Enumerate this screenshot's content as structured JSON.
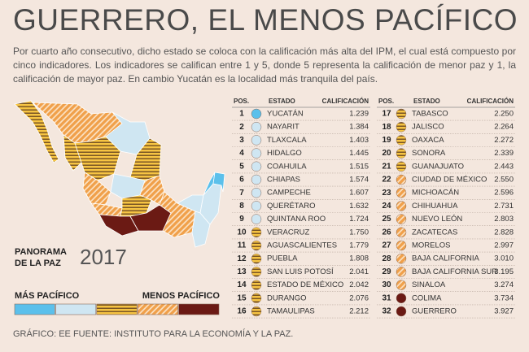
{
  "header": {
    "title": "GUERRERO, EL MENOS PACÍFICO",
    "description": "Por cuarto año consecutivo, dicho estado se coloca con la calificación más alta del IPM, el cual está compuesto por cinco indicadores. Los indicadores se califican entre 1 y 5, donde 5 representa la calificación de menor paz y 1, la calificación de mayor paz. En cambio Yucatán es la localidad más tranquila del país."
  },
  "panorama": {
    "label_line1": "PANORAMA",
    "label_line2": "DE LA PAZ",
    "year": "2017"
  },
  "legend": {
    "left_label": "MÁS PACÍFICO",
    "right_label": "MENOS PACÍFICO",
    "levels": [
      "#5bc0eb",
      "#cfe6f2",
      "url(#pat-yellow)",
      "url(#pat-orange)",
      "#6b1a14"
    ]
  },
  "table": {
    "columns": [
      "POS.",
      "ESTADO",
      "CALIFICACIÓN"
    ],
    "rows": [
      {
        "rank": 1,
        "state": "YUCATÁN",
        "score": "1.239",
        "level": 0
      },
      {
        "rank": 2,
        "state": "NAYARIT",
        "score": "1.384",
        "level": 1
      },
      {
        "rank": 3,
        "state": "TLAXCALA",
        "score": "1.403",
        "level": 1
      },
      {
        "rank": 4,
        "state": "HIDALGO",
        "score": "1.445",
        "level": 1
      },
      {
        "rank": 5,
        "state": "COAHUILA",
        "score": "1.515",
        "level": 1
      },
      {
        "rank": 6,
        "state": "CHIAPAS",
        "score": "1.574",
        "level": 1
      },
      {
        "rank": 7,
        "state": "CAMPECHE",
        "score": "1.607",
        "level": 1
      },
      {
        "rank": 8,
        "state": "QUERÉTARO",
        "score": "1.632",
        "level": 1
      },
      {
        "rank": 9,
        "state": "QUINTANA ROO",
        "score": "1.724",
        "level": 1
      },
      {
        "rank": 10,
        "state": "VERACRUZ",
        "score": "1.750",
        "level": 2
      },
      {
        "rank": 11,
        "state": "AGUASCALIENTES",
        "score": "1.779",
        "level": 2
      },
      {
        "rank": 12,
        "state": "PUEBLA",
        "score": "1.808",
        "level": 2
      },
      {
        "rank": 13,
        "state": "SAN LUIS POTOSÍ",
        "score": "2.041",
        "level": 2
      },
      {
        "rank": 14,
        "state": "ESTADO DE MÉXICO",
        "score": "2.042",
        "level": 2
      },
      {
        "rank": 15,
        "state": "DURANGO",
        "score": "2.076",
        "level": 2
      },
      {
        "rank": 16,
        "state": "TAMAULIPAS",
        "score": "2.212",
        "level": 2
      },
      {
        "rank": 17,
        "state": "TABASCO",
        "score": "2.250",
        "level": 2
      },
      {
        "rank": 18,
        "state": "JALISCO",
        "score": "2.264",
        "level": 2
      },
      {
        "rank": 19,
        "state": "OAXACA",
        "score": "2.272",
        "level": 2
      },
      {
        "rank": 20,
        "state": "SONORA",
        "score": "2.339",
        "level": 2
      },
      {
        "rank": 21,
        "state": "GUANAJUATO",
        "score": "2.443",
        "level": 2
      },
      {
        "rank": 22,
        "state": "CIUDAD DE MÉXICO",
        "score": "2.550",
        "level": 3
      },
      {
        "rank": 23,
        "state": "MICHOACÁN",
        "score": "2.596",
        "level": 3
      },
      {
        "rank": 24,
        "state": "CHIHUAHUA",
        "score": "2.731",
        "level": 3
      },
      {
        "rank": 25,
        "state": "NUEVO LEÓN",
        "score": "2.803",
        "level": 3
      },
      {
        "rank": 26,
        "state": "ZACATECAS",
        "score": "2.828",
        "level": 3
      },
      {
        "rank": 27,
        "state": "MORELOS",
        "score": "2.997",
        "level": 3
      },
      {
        "rank": 28,
        "state": "BAJA CALIFORNIA",
        "score": "3.010",
        "level": 3
      },
      {
        "rank": 29,
        "state": "BAJA CALIFORNIA SUR",
        "score": "3.195",
        "level": 3
      },
      {
        "rank": 30,
        "state": "SINALOA",
        "score": "3.274",
        "level": 3
      },
      {
        "rank": 31,
        "state": "COLIMA",
        "score": "3.734",
        "level": 4
      },
      {
        "rank": 32,
        "state": "GUERRERO",
        "score": "3.927",
        "level": 4
      }
    ]
  },
  "footer": "GRÁFICO: EE  FUENTE: INSTITUTO PARA LA ECONOMÍA Y LA PAZ."
}
